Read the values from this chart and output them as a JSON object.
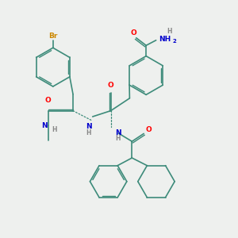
{
  "background_color": "#eef0ee",
  "line_color": "#3d8b7a",
  "atom_colors": {
    "Br": "#cc8800",
    "O": "#ff0000",
    "N": "#0000cc",
    "H": "#888888",
    "C": "#3d8b7a"
  },
  "lw": 1.2,
  "figsize": [
    3.0,
    3.0
  ],
  "dpi": 100
}
